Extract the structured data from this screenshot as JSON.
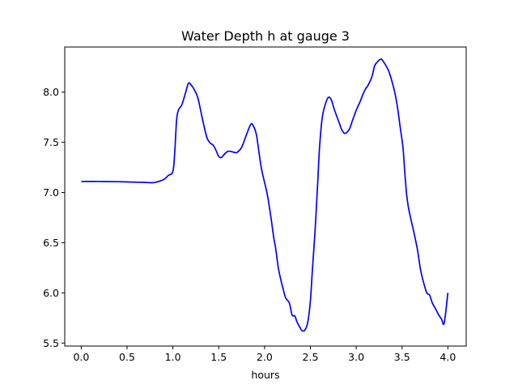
{
  "chart_data": {
    "type": "line",
    "title": "Water Depth h at gauge 3",
    "xlabel": "hours",
    "ylabel": "",
    "xlim": [
      -0.18,
      4.2
    ],
    "ylim": [
      5.47,
      8.45
    ],
    "xticks": [
      0.0,
      0.5,
      1.0,
      1.5,
      2.0,
      2.5,
      3.0,
      3.5,
      4.0
    ],
    "xtick_labels": [
      "0.0",
      "0.5",
      "1.0",
      "1.5",
      "2.0",
      "2.5",
      "3.0",
      "3.5",
      "4.0"
    ],
    "yticks": [
      5.5,
      6.0,
      6.5,
      7.0,
      7.5,
      8.0
    ],
    "ytick_labels": [
      "5.5",
      "6.0",
      "6.5",
      "7.0",
      "7.5",
      "8.0"
    ],
    "grid": false,
    "series": [
      {
        "name": "",
        "color": "#0000ff",
        "x": [
          0.0,
          0.2,
          0.4,
          0.6,
          0.7,
          0.75,
          0.8,
          0.9,
          0.95,
          1.0,
          1.02,
          1.04,
          1.06,
          1.08,
          1.1,
          1.14,
          1.17,
          1.2,
          1.23,
          1.27,
          1.3,
          1.33,
          1.37,
          1.4,
          1.44,
          1.47,
          1.5,
          1.53,
          1.57,
          1.6,
          1.63,
          1.67,
          1.7,
          1.75,
          1.8,
          1.85,
          1.88,
          1.91,
          1.93,
          1.95,
          1.97,
          2.0,
          2.03,
          2.07,
          2.1,
          2.12,
          2.15,
          2.18,
          2.2,
          2.23,
          2.27,
          2.3,
          2.33,
          2.35,
          2.37,
          2.39,
          2.4,
          2.42,
          2.44,
          2.47,
          2.5,
          2.52,
          2.55,
          2.58,
          2.6,
          2.63,
          2.67,
          2.7,
          2.73,
          2.76,
          2.8,
          2.82,
          2.84,
          2.87,
          2.9,
          2.93,
          2.96,
          3.0,
          3.04,
          3.07,
          3.1,
          3.13,
          3.17,
          3.2,
          3.23,
          3.27,
          3.3,
          3.35,
          3.38,
          3.42,
          3.45,
          3.48,
          3.51,
          3.53,
          3.55,
          3.57,
          3.6,
          3.63,
          3.67,
          3.7,
          3.73,
          3.77,
          3.8,
          3.83,
          3.86,
          3.9,
          3.93,
          3.96,
          4.0
        ],
        "y": [
          7.11,
          7.11,
          7.108,
          7.103,
          7.1,
          7.098,
          7.1,
          7.13,
          7.17,
          7.21,
          7.4,
          7.72,
          7.82,
          7.85,
          7.88,
          8.0,
          8.09,
          8.07,
          8.03,
          7.95,
          7.83,
          7.7,
          7.55,
          7.5,
          7.47,
          7.42,
          7.36,
          7.35,
          7.39,
          7.41,
          7.41,
          7.4,
          7.4,
          7.45,
          7.57,
          7.68,
          7.66,
          7.58,
          7.46,
          7.33,
          7.22,
          7.1,
          6.98,
          6.75,
          6.55,
          6.45,
          6.25,
          6.12,
          6.05,
          5.95,
          5.9,
          5.78,
          5.77,
          5.72,
          5.68,
          5.65,
          5.63,
          5.62,
          5.63,
          5.7,
          5.92,
          6.2,
          6.6,
          7.1,
          7.45,
          7.75,
          7.9,
          7.95,
          7.92,
          7.83,
          7.73,
          7.68,
          7.63,
          7.59,
          7.6,
          7.64,
          7.72,
          7.82,
          7.9,
          7.97,
          8.03,
          8.07,
          8.15,
          8.26,
          8.3,
          8.33,
          8.3,
          8.22,
          8.14,
          8.0,
          7.85,
          7.65,
          7.45,
          7.2,
          6.98,
          6.85,
          6.72,
          6.6,
          6.42,
          6.24,
          6.12,
          6.0,
          5.98,
          5.9,
          5.85,
          5.78,
          5.74,
          5.7,
          6.0
        ]
      }
    ]
  }
}
